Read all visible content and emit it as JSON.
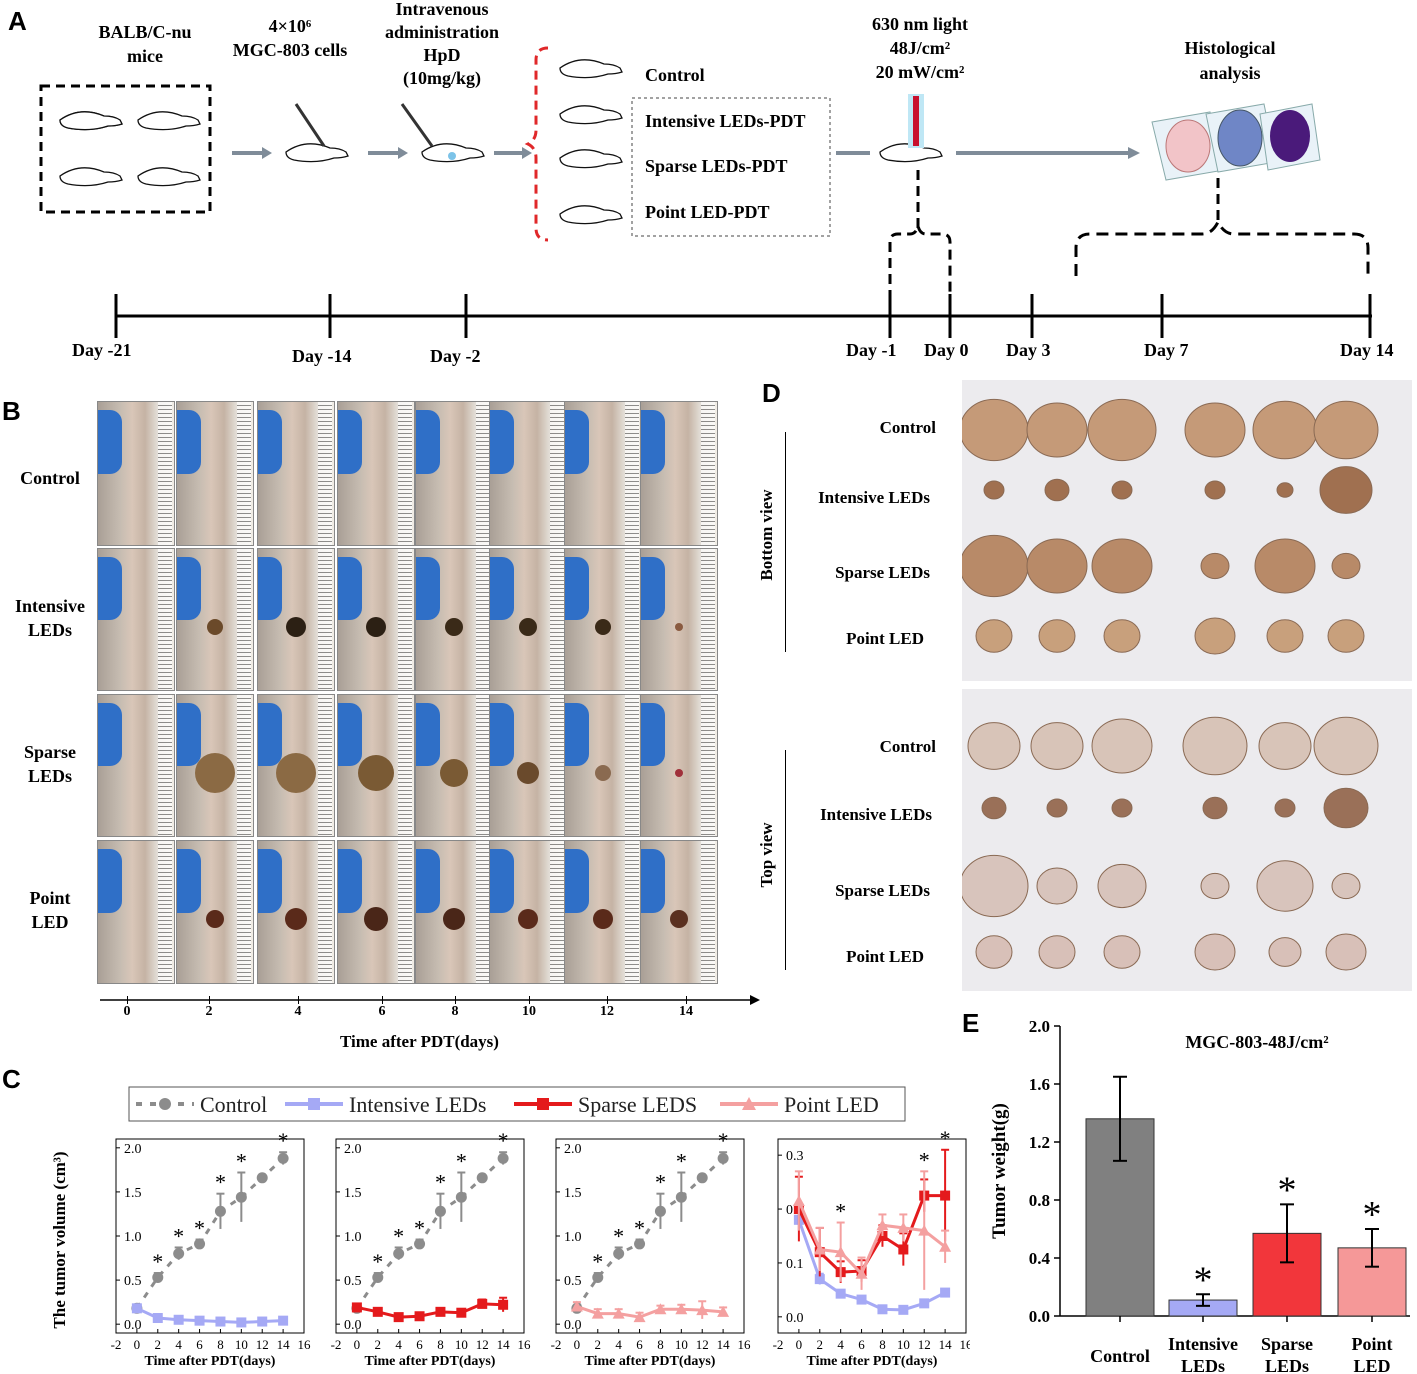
{
  "panels": {
    "A": "A",
    "B": "B",
    "C": "C",
    "D": "D",
    "E": "E"
  },
  "panel_a": {
    "mice_label": "BALB/C-nu\nmice",
    "cells_label": "4×10⁶\nMGC-803 cells",
    "admin_label": "Intravenous\nadministration\nHpD\n(10mg/kg)",
    "light_label": "630 nm light\n48J/cm²\n20 mW/cm²",
    "histo_label": "Histological\nanalysis",
    "groups": [
      "Control",
      "Intensive LEDs-PDT",
      "Sparse LEDs-PDT",
      "Point LED-PDT"
    ],
    "timeline": [
      "Day -21",
      "Day -14",
      "Day -2",
      "Day -1",
      "Day 0",
      "Day 3",
      "Day 7",
      "Day 14"
    ],
    "colors": {
      "arrow": "#7f8c99",
      "brace": "#e0282a",
      "laser": "#c8102e"
    }
  },
  "panel_b": {
    "rows": [
      "Control",
      "Intensive\nLEDs",
      "Sparse\nLEDs",
      "Point\nLED"
    ],
    "ticks": [
      "0",
      "2",
      "4",
      "6",
      "8",
      "10",
      "12",
      "14"
    ],
    "axis_label": "Time after PDT(days)"
  },
  "panel_d": {
    "bottom_view": "Bottom view",
    "top_view": "Top view",
    "rows": [
      "Control",
      "Intensive LEDs",
      "Sparse LEDs",
      "Point LED"
    ]
  },
  "legend": [
    {
      "name": "Control",
      "color": "#8c8c8c",
      "marker": "circle"
    },
    {
      "name": "Intensive LEDs",
      "color": "#a5a9f5",
      "marker": "square"
    },
    {
      "name": "Sparse LEDS",
      "color": "#e41a1c",
      "marker": "square"
    },
    {
      "name": "Point LED",
      "color": "#f4a0a0",
      "marker": "triangle"
    }
  ],
  "chart_data": [
    {
      "type": "line",
      "title": "",
      "xlabel": "Time after PDT(days)",
      "ylabel": "The tumor volume (cm³)",
      "xlim": [
        -2,
        16
      ],
      "ylim": [
        -0.1,
        2.1
      ],
      "xticks": [
        -2,
        0,
        2,
        4,
        6,
        8,
        10,
        12,
        14,
        16
      ],
      "yticks": [
        "0.0",
        "0.5",
        "1.0",
        "1.5",
        "2.0"
      ],
      "x": [
        0,
        2,
        4,
        6,
        8,
        10,
        12,
        14
      ],
      "series": [
        {
          "name": "Control",
          "values": [
            0.18,
            0.53,
            0.8,
            0.91,
            1.28,
            1.44,
            1.66,
            1.88
          ],
          "err": [
            0.03,
            0.05,
            0.07,
            0.05,
            0.2,
            0.28,
            0.03,
            0.07
          ],
          "stars": [
            false,
            true,
            true,
            true,
            true,
            true,
            false,
            true
          ]
        },
        {
          "name": "Intensive LEDs",
          "values": [
            0.18,
            0.07,
            0.05,
            0.04,
            0.03,
            0.02,
            0.03,
            0.04
          ],
          "err": [
            0.02,
            0.02,
            0.01,
            0.01,
            0.01,
            0.01,
            0.01,
            0.01
          ]
        }
      ]
    },
    {
      "type": "line",
      "xlabel": "Time after PDT(days)",
      "ylabel": "",
      "xlim": [
        -2,
        16
      ],
      "ylim": [
        -0.1,
        2.1
      ],
      "xticks": [
        -2,
        0,
        2,
        4,
        6,
        8,
        10,
        12,
        14,
        16
      ],
      "yticks": [
        "0.0",
        "0.5",
        "1.0",
        "1.5",
        "2.0"
      ],
      "x": [
        0,
        2,
        4,
        6,
        8,
        10,
        12,
        14
      ],
      "series": [
        {
          "name": "Control",
          "values": [
            0.18,
            0.53,
            0.8,
            0.91,
            1.28,
            1.44,
            1.66,
            1.88
          ],
          "err": [
            0.03,
            0.05,
            0.07,
            0.05,
            0.2,
            0.28,
            0.03,
            0.07
          ],
          "stars": [
            false,
            true,
            true,
            true,
            true,
            true,
            false,
            true
          ]
        },
        {
          "name": "Sparse LEDS",
          "values": [
            0.19,
            0.14,
            0.08,
            0.09,
            0.14,
            0.13,
            0.23,
            0.22
          ],
          "err": [
            0.04,
            0.04,
            0.03,
            0.03,
            0.03,
            0.03,
            0.05,
            0.08
          ]
        }
      ]
    },
    {
      "type": "line",
      "xlabel": "Time after PDT(days)",
      "ylabel": "",
      "xlim": [
        -2,
        16
      ],
      "ylim": [
        -0.1,
        2.1
      ],
      "xticks": [
        -2,
        0,
        2,
        4,
        6,
        8,
        10,
        12,
        14,
        16
      ],
      "yticks": [
        "0.0",
        "0.5",
        "1.0",
        "1.5",
        "2.0"
      ],
      "x": [
        0,
        2,
        4,
        6,
        8,
        10,
        12,
        14
      ],
      "series": [
        {
          "name": "Control",
          "values": [
            0.18,
            0.53,
            0.8,
            0.91,
            1.28,
            1.44,
            1.66,
            1.88
          ],
          "err": [
            0.03,
            0.05,
            0.07,
            0.05,
            0.2,
            0.28,
            0.03,
            0.07
          ],
          "stars": [
            false,
            true,
            true,
            true,
            true,
            true,
            false,
            true
          ]
        },
        {
          "name": "Point LED",
          "values": [
            0.2,
            0.12,
            0.12,
            0.08,
            0.17,
            0.17,
            0.16,
            0.14
          ],
          "err": [
            0.05,
            0.05,
            0.05,
            0.05,
            0.04,
            0.05,
            0.1,
            0.05
          ]
        }
      ]
    },
    {
      "type": "line",
      "xlabel": "Time after PDT(days)",
      "ylabel": "",
      "xlim": [
        -2,
        16
      ],
      "ylim": [
        -0.03,
        0.33
      ],
      "xticks": [
        -2,
        0,
        2,
        4,
        6,
        8,
        10,
        12,
        14,
        16
      ],
      "yticks": [
        "0.0",
        "0.1",
        "0.2",
        "0.3"
      ],
      "x": [
        0,
        2,
        4,
        6,
        8,
        10,
        12,
        14
      ],
      "star_at_x": [
        4,
        12,
        14
      ],
      "series": [
        {
          "name": "Intensive LEDs",
          "values": [
            0.18,
            0.07,
            0.043,
            0.032,
            0.014,
            0.013,
            0.025,
            0.045
          ],
          "err": [
            0.02,
            0.01,
            0.005,
            0.005,
            0.004,
            0.004,
            0.005,
            0.006
          ]
        },
        {
          "name": "Sparse LEDS",
          "values": [
            0.2,
            0.12,
            0.083,
            0.085,
            0.15,
            0.125,
            0.225,
            0.225
          ],
          "err": [
            0.06,
            0.045,
            0.02,
            0.02,
            0.02,
            0.03,
            0.03,
            0.085
          ]
        },
        {
          "name": "Point LED",
          "values": [
            0.215,
            0.125,
            0.12,
            0.08,
            0.17,
            0.165,
            0.16,
            0.13
          ],
          "err": [
            0.055,
            0.04,
            0.055,
            0.03,
            0.02,
            0.025,
            0.11,
            0.03
          ]
        }
      ]
    },
    {
      "type": "bar",
      "title": "MGC-803-48J/cm²",
      "xlabel": "",
      "ylabel": "Tumor weight(g)",
      "ylim": [
        0,
        2.0
      ],
      "yticks": [
        "0.0",
        "0.4",
        "0.8",
        "1.2",
        "1.6",
        "2.0"
      ],
      "categories": [
        "Control",
        "Intensive\nLEDs",
        "Sparse\nLEDs",
        "Point\nLED"
      ],
      "values": [
        1.36,
        0.11,
        0.57,
        0.47
      ],
      "err": [
        0.29,
        0.04,
        0.2,
        0.13
      ],
      "stars": [
        false,
        true,
        true,
        true
      ],
      "colors": [
        "#808080",
        "#a5a9f5",
        "#f2363b",
        "#f59898"
      ]
    }
  ]
}
